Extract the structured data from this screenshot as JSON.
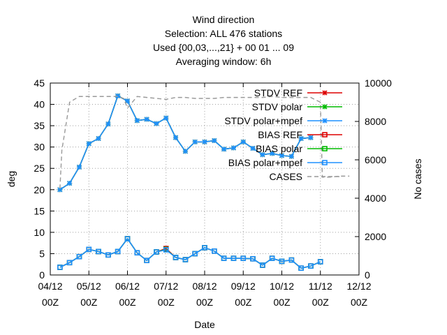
{
  "chart_data": {
    "type": "line",
    "title_lines": [
      "Wind direction",
      "Selection: ALL    476 stations",
      "Used {00,03,...,21} + 00 01 ... 09",
      "Averaging window:  6h"
    ],
    "xlabel": "Date",
    "ylabel": "deg",
    "y2label": "No cases",
    "x_ticks": [
      {
        "day": 0,
        "line1": "04/12",
        "line2": "00Z"
      },
      {
        "day": 1,
        "line1": "05/12",
        "line2": "00Z"
      },
      {
        "day": 2,
        "line1": "06/12",
        "line2": "00Z"
      },
      {
        "day": 3,
        "line1": "07/12",
        "line2": "00Z"
      },
      {
        "day": 4,
        "line1": "08/12",
        "line2": "00Z"
      },
      {
        "day": 5,
        "line1": "09/12",
        "line2": "00Z"
      },
      {
        "day": 6,
        "line1": "10/12",
        "line2": "00Z"
      },
      {
        "day": 7,
        "line1": "11/12",
        "line2": "00Z"
      },
      {
        "day": 8,
        "line1": "12/12",
        "line2": "00Z"
      }
    ],
    "xlim": [
      0,
      8
    ],
    "ylim": [
      0,
      45
    ],
    "y_ticks": [
      0,
      5,
      10,
      15,
      20,
      25,
      30,
      35,
      40,
      45
    ],
    "y2lim": [
      0,
      10000
    ],
    "y2_ticks": [
      0,
      2000,
      4000,
      6000,
      8000,
      10000
    ],
    "grid": true,
    "legend_position": "top-right",
    "x_days": [
      0.25,
      0.5,
      0.75,
      1.0,
      1.25,
      1.5,
      1.75,
      2.0,
      2.25,
      2.5,
      2.75,
      3.0,
      3.25,
      3.5,
      3.75,
      4.0,
      4.25,
      4.5,
      4.75,
      5.0,
      5.25,
      5.5,
      5.75,
      6.0,
      6.25,
      6.5,
      6.75,
      7.0,
      7.25,
      7.5
    ],
    "series": [
      {
        "name": "STDV REF",
        "axis": "y",
        "color": "#dd0000",
        "marker": "x",
        "values": [
          20.0,
          21.5,
          25.3,
          30.8,
          32.0,
          35.4,
          42.0,
          40.8,
          36.2,
          36.5,
          35.5,
          36.8,
          32.2,
          29.0,
          31.2,
          31.2,
          31.5,
          29.5,
          29.8,
          31.2,
          29.7,
          28.2,
          28.5,
          28.0,
          27.8,
          32.0,
          32.2,
          null,
          null,
          null
        ]
      },
      {
        "name": "STDV polar",
        "axis": "y",
        "color": "#00bb00",
        "marker": "x",
        "values": [
          20.0,
          21.5,
          25.3,
          30.8,
          32.0,
          35.4,
          42.0,
          40.8,
          36.2,
          36.5,
          35.5,
          36.8,
          32.2,
          29.0,
          31.2,
          31.2,
          31.5,
          29.5,
          29.8,
          31.2,
          29.7,
          28.2,
          28.5,
          28.0,
          27.8,
          32.0,
          32.2,
          null,
          null,
          null
        ]
      },
      {
        "name": "STDV polar+mpef",
        "axis": "y",
        "color": "#1e90ff",
        "marker": "x",
        "values": [
          20.0,
          21.5,
          25.3,
          30.8,
          32.0,
          35.4,
          42.0,
          40.8,
          36.2,
          36.5,
          35.5,
          36.8,
          32.2,
          29.0,
          31.2,
          31.2,
          31.5,
          29.5,
          29.8,
          31.2,
          29.7,
          28.2,
          28.5,
          28.0,
          27.8,
          32.0,
          32.2,
          null,
          null,
          null
        ]
      },
      {
        "name": "BIAS REF",
        "axis": "y",
        "color": "#dd0000",
        "marker": "square",
        "values": [
          1.8,
          2.9,
          4.3,
          6.0,
          5.5,
          4.7,
          5.5,
          8.5,
          5.2,
          3.4,
          5.4,
          6.2,
          4.1,
          3.6,
          5.0,
          6.4,
          5.6,
          3.9,
          3.9,
          3.9,
          3.8,
          2.3,
          3.9,
          3.2,
          3.5,
          1.6,
          2.1,
          3.1,
          null,
          null
        ]
      },
      {
        "name": "BIAS polar",
        "axis": "y",
        "color": "#00bb00",
        "marker": "square",
        "values": [
          1.8,
          2.9,
          4.3,
          6.0,
          5.5,
          4.7,
          5.5,
          8.5,
          5.2,
          3.4,
          5.4,
          6.0,
          4.1,
          3.6,
          5.0,
          6.4,
          5.6,
          3.9,
          3.9,
          3.9,
          3.8,
          2.3,
          3.9,
          3.2,
          3.5,
          1.6,
          2.1,
          3.1,
          null,
          null
        ]
      },
      {
        "name": "BIAS polar+mpef",
        "axis": "y",
        "color": "#1e90ff",
        "marker": "square",
        "values": [
          1.8,
          2.9,
          4.3,
          6.0,
          5.5,
          4.7,
          5.5,
          8.5,
          5.2,
          3.4,
          5.4,
          5.9,
          4.1,
          3.6,
          5.0,
          6.4,
          5.6,
          3.9,
          3.9,
          3.9,
          3.8,
          2.3,
          3.9,
          3.2,
          3.5,
          1.6,
          2.1,
          3.1,
          null,
          null
        ]
      },
      {
        "name": "CASES",
        "axis": "y2",
        "color": "#999999",
        "marker": "none",
        "dashed": true,
        "x": [
          0.25,
          0.3,
          0.5,
          0.75,
          1.0,
          1.25,
          1.5,
          1.75,
          1.9,
          2.0,
          2.25,
          2.5,
          2.75,
          3.0,
          3.25,
          3.5,
          3.75,
          4.0,
          4.25,
          4.5,
          4.75,
          5.0,
          5.25,
          5.5,
          5.75,
          6.0,
          6.25,
          6.5,
          6.75,
          7.0,
          7.05,
          7.25,
          7.5,
          7.75
        ],
        "values": [
          4500,
          6500,
          9000,
          9300,
          9300,
          9300,
          9300,
          9300,
          9200,
          8700,
          9300,
          9250,
          9200,
          9150,
          9250,
          9250,
          9200,
          9200,
          9200,
          9250,
          9250,
          9250,
          9250,
          9250,
          9300,
          9250,
          9250,
          9250,
          9250,
          9000,
          5100,
          5100,
          5150,
          5150
        ]
      }
    ]
  }
}
